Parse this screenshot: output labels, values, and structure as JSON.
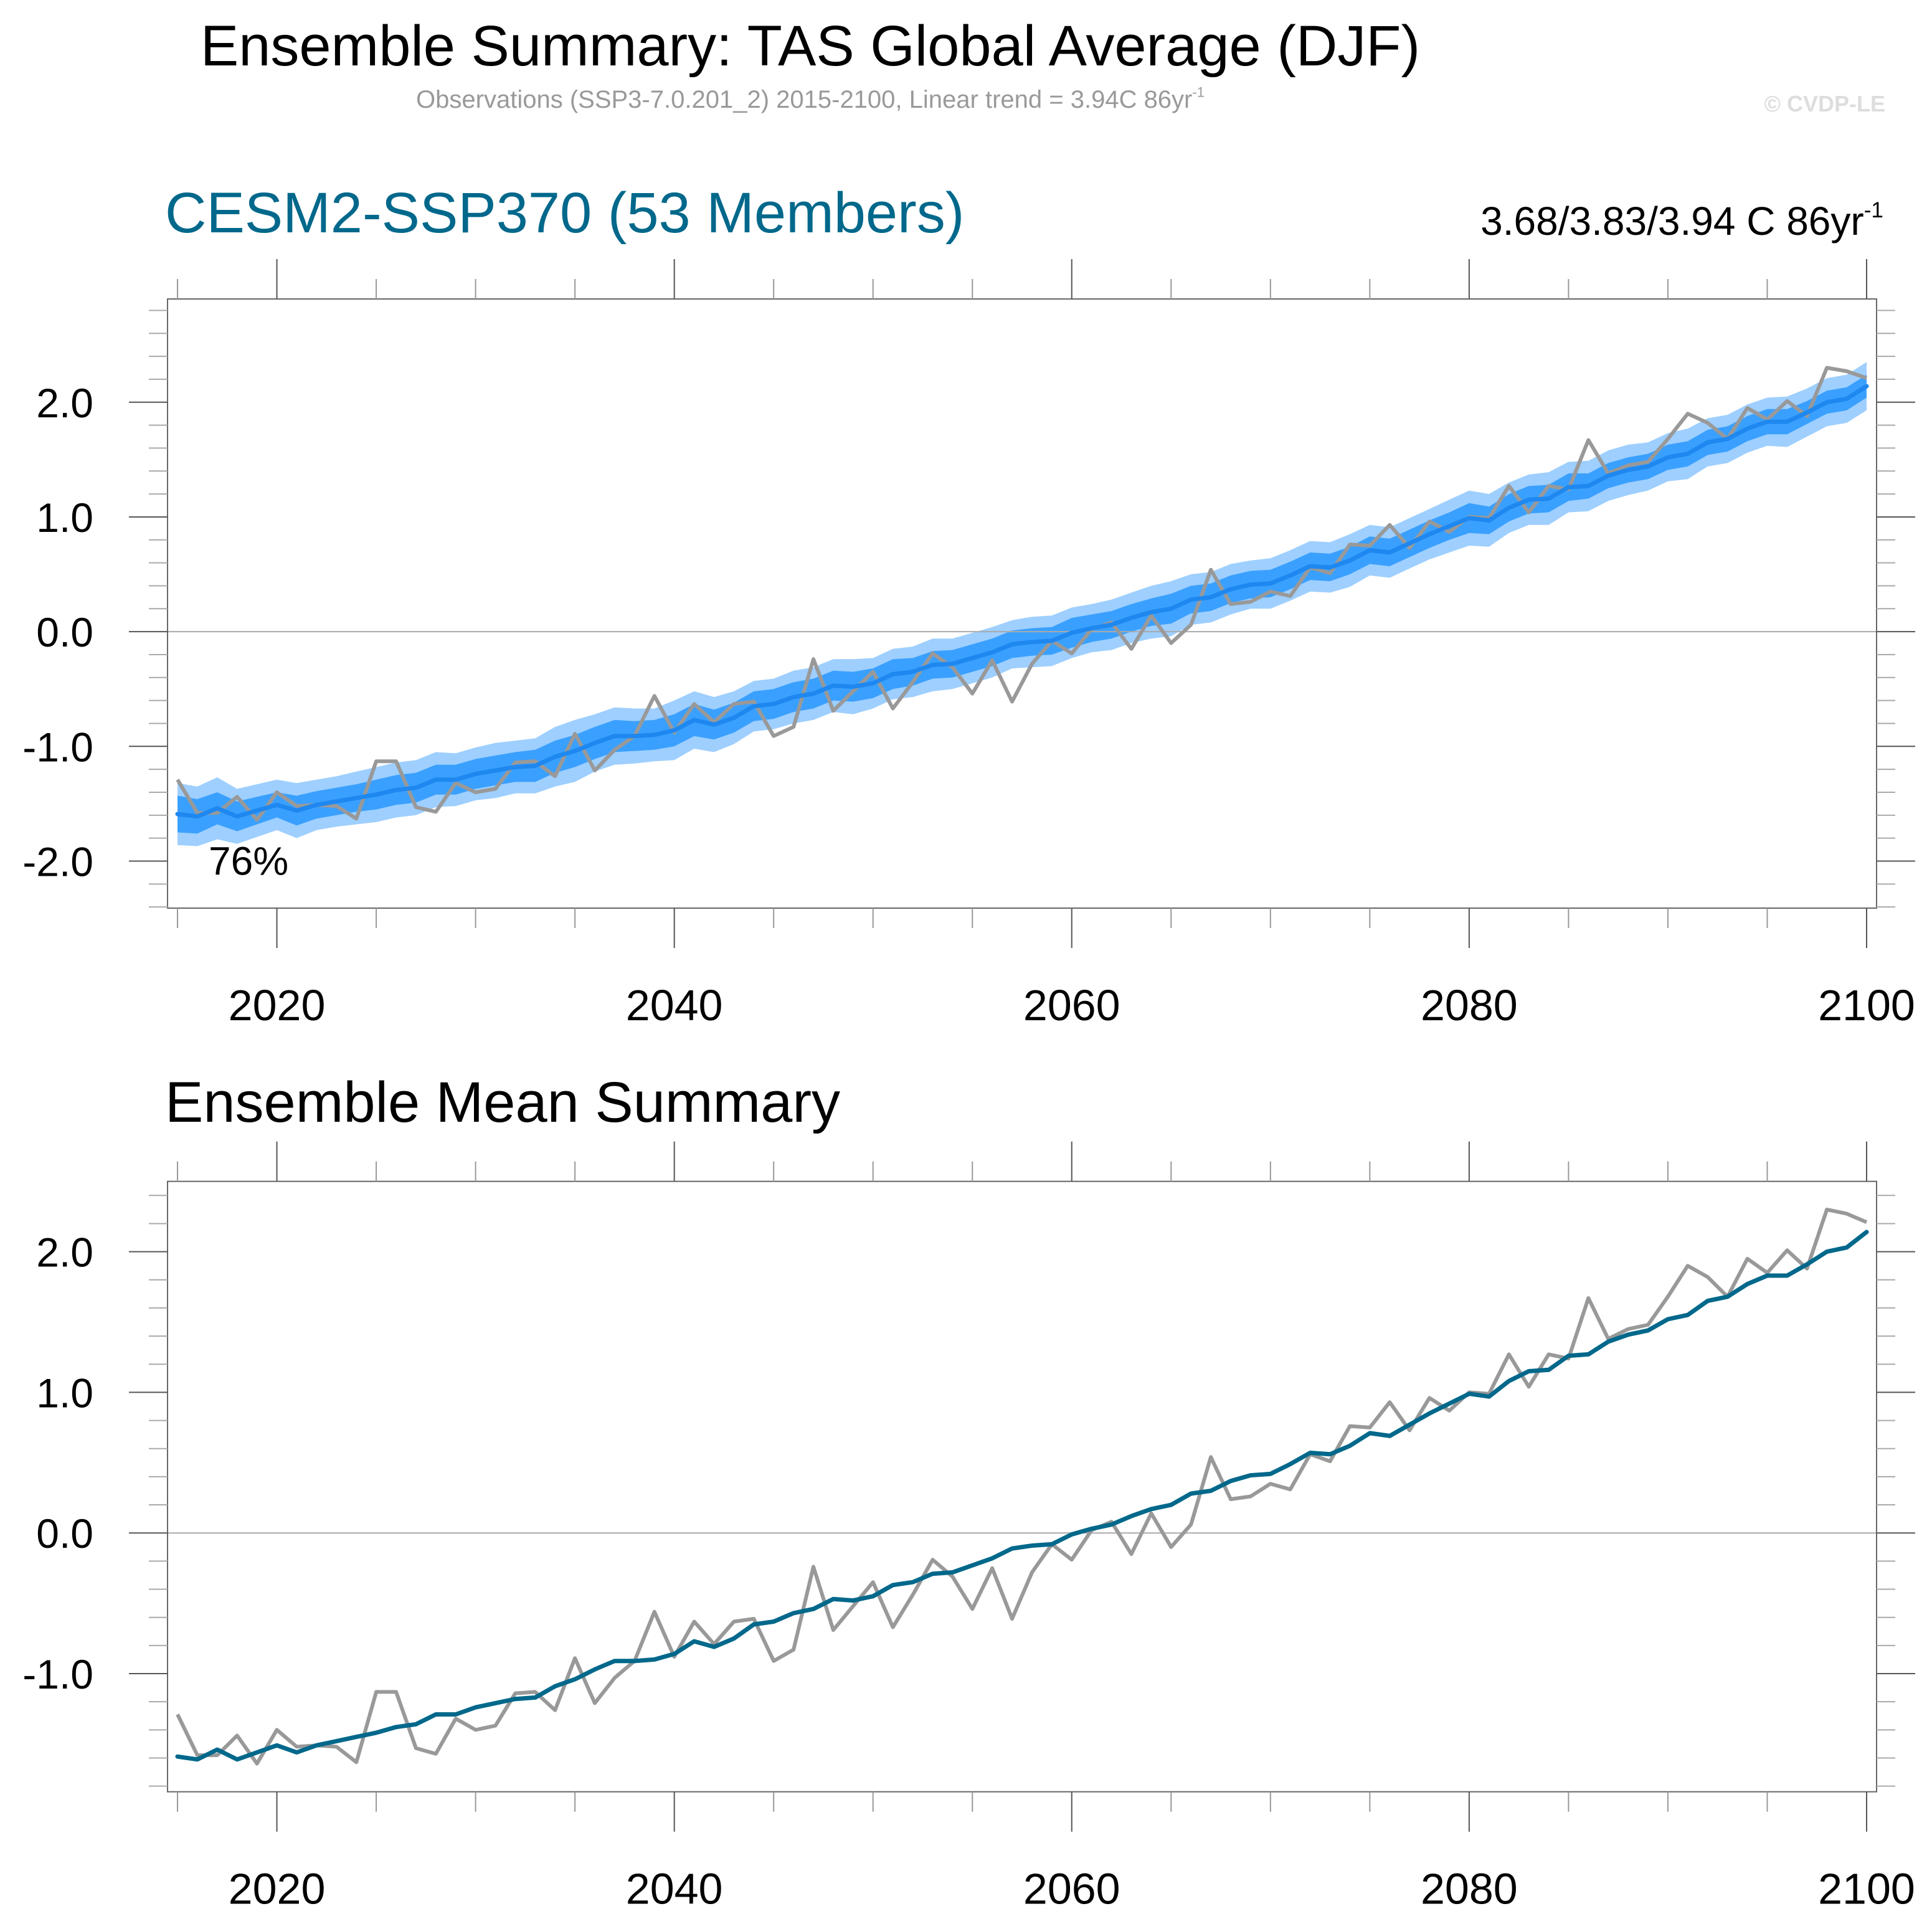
{
  "header": {
    "title": "Ensemble Summary: TAS Global Average (DJF)",
    "subtitle_main": "Observations (SSP3-7.0.201_2) 2015-2100, Linear trend = 3.94C 86yr",
    "subtitle_sup": "-1",
    "copyright": "© CVDP-LE"
  },
  "panels": {
    "top": {
      "title": "CESM2-SSP370 (53 Members)",
      "trend_main": "3.68/3.83/3.94 C 86yr",
      "trend_sup": "-1",
      "annotation": "76%"
    },
    "bottom": {
      "title": "Ensemble Mean Summary"
    }
  },
  "colors": {
    "model_title": "#00688b",
    "ensemble_mean_top": "#1e88f0",
    "inner_band": "#3aa0ff",
    "outer_band": "#9ecfff",
    "ensemble_mean_bottom": "#00688b",
    "observations": "#999999",
    "subtitle": "#999999",
    "copyright": "#dddddd"
  },
  "chart_data": [
    {
      "type": "area",
      "title": "CESM2-SSP370 (53 Members)",
      "xlabel": "",
      "ylabel": "",
      "xlim": [
        2015,
        2100
      ],
      "ylim": [
        -2.41,
        2.9
      ],
      "x_ticks": [
        2020,
        2040,
        2060,
        2080,
        2100
      ],
      "x_tick_labels": [
        "2020",
        "2040",
        "2060",
        "2080",
        "2100"
      ],
      "y_ticks": [
        -2.0,
        -1.0,
        0.0,
        1.0,
        2.0
      ],
      "y_tick_labels": [
        "-2.0",
        "-1.0",
        "0.0",
        "1.0",
        "2.0"
      ],
      "zero_line": true,
      "annotation": "76%",
      "x_start": 2015,
      "series_refs": [
        "ensemble_mean",
        "observations"
      ],
      "bands": [
        {
          "name": "outer spread (light)",
          "halfwidth": [
            0.27,
            0.26,
            0.27,
            0.24,
            0.23,
            0.22,
            0.24,
            0.22,
            0.22,
            0.23,
            0.24,
            0.24,
            0.24,
            0.24,
            0.23,
            0.23,
            0.24,
            0.23,
            0.24,
            0.26,
            0.27,
            0.25,
            0.25,
            0.24,
            0.23,
            0.26,
            0.25,
            0.24,
            0.23,
            0.22,
            0.22,
            0.23,
            0.23,
            0.23,
            0.24,
            0.22,
            0.22,
            0.22,
            0.23,
            0.22,
            0.22,
            0.22,
            0.21,
            0.22,
            0.22,
            0.22,
            0.21,
            0.22,
            0.22,
            0.23,
            0.24,
            0.22,
            0.22,
            0.22,
            0.21,
            0.22,
            0.22,
            0.22,
            0.22,
            0.23,
            0.22,
            0.22,
            0.22,
            0.22,
            0.23,
            0.24,
            0.23,
            0.22,
            0.22,
            0.23,
            0.22,
            0.22,
            0.22,
            0.22,
            0.21,
            0.21,
            0.22,
            0.21,
            0.21,
            0.21,
            0.21,
            0.22,
            0.21,
            0.21,
            0.21,
            0.21
          ]
        },
        {
          "name": "inner spread (dark)",
          "halfwidth": [
            0.16,
            0.15,
            0.14,
            0.13,
            0.12,
            0.11,
            0.13,
            0.12,
            0.12,
            0.12,
            0.13,
            0.13,
            0.13,
            0.13,
            0.13,
            0.13,
            0.13,
            0.13,
            0.14,
            0.14,
            0.14,
            0.14,
            0.14,
            0.13,
            0.13,
            0.14,
            0.14,
            0.13,
            0.13,
            0.13,
            0.13,
            0.13,
            0.13,
            0.13,
            0.13,
            0.13,
            0.13,
            0.12,
            0.12,
            0.12,
            0.12,
            0.12,
            0.12,
            0.12,
            0.12,
            0.13,
            0.12,
            0.12,
            0.12,
            0.12,
            0.13,
            0.12,
            0.12,
            0.12,
            0.12,
            0.12,
            0.12,
            0.12,
            0.12,
            0.12,
            0.12,
            0.12,
            0.12,
            0.12,
            0.12,
            0.13,
            0.12,
            0.12,
            0.12,
            0.12,
            0.12,
            0.11,
            0.11,
            0.11,
            0.11,
            0.11,
            0.11,
            0.11,
            0.11,
            0.11,
            0.11,
            0.11,
            0.1,
            0.1,
            0.1,
            0.1
          ]
        }
      ]
    },
    {
      "type": "line",
      "title": "Ensemble Mean Summary",
      "xlabel": "",
      "ylabel": "",
      "xlim": [
        2015,
        2100
      ],
      "ylim": [
        -1.84,
        2.5
      ],
      "x_ticks": [
        2020,
        2040,
        2060,
        2080,
        2100
      ],
      "x_tick_labels": [
        "2020",
        "2040",
        "2060",
        "2080",
        "2100"
      ],
      "y_ticks": [
        -1.0,
        0.0,
        1.0,
        2.0
      ],
      "y_tick_labels": [
        "-1.0",
        "0.0",
        "1.0",
        "2.0"
      ],
      "zero_line": true,
      "x_start": 2015,
      "series": [
        {
          "name": "ensemble_mean",
          "values": [
            -1.59,
            -1.61,
            -1.54,
            -1.61,
            -1.56,
            -1.51,
            -1.56,
            -1.51,
            -1.48,
            -1.45,
            -1.42,
            -1.38,
            -1.36,
            -1.29,
            -1.29,
            -1.24,
            -1.21,
            -1.18,
            -1.17,
            -1.09,
            -1.04,
            -0.97,
            -0.91,
            -0.91,
            -0.9,
            -0.86,
            -0.77,
            -0.81,
            -0.75,
            -0.65,
            -0.63,
            -0.57,
            -0.54,
            -0.47,
            -0.48,
            -0.45,
            -0.37,
            -0.35,
            -0.29,
            -0.28,
            -0.23,
            -0.18,
            -0.11,
            -0.09,
            -0.08,
            -0.01,
            0.03,
            0.06,
            0.12,
            0.17,
            0.2,
            0.28,
            0.3,
            0.37,
            0.41,
            0.42,
            0.49,
            0.57,
            0.56,
            0.62,
            0.71,
            0.69,
            0.77,
            0.85,
            0.92,
            0.99,
            0.97,
            1.08,
            1.15,
            1.16,
            1.26,
            1.27,
            1.36,
            1.41,
            1.44,
            1.52,
            1.55,
            1.65,
            1.68,
            1.77,
            1.83,
            1.83,
            1.91,
            2.0,
            2.03,
            2.14
          ]
        },
        {
          "name": "observations",
          "values": [
            -1.29,
            -1.58,
            -1.58,
            -1.44,
            -1.64,
            -1.4,
            -1.52,
            -1.51,
            -1.52,
            -1.63,
            -1.13,
            -1.13,
            -1.53,
            -1.57,
            -1.32,
            -1.4,
            -1.37,
            -1.14,
            -1.13,
            -1.26,
            -0.89,
            -1.21,
            -1.03,
            -0.91,
            -0.56,
            -0.88,
            -0.63,
            -0.79,
            -0.63,
            -0.61,
            -0.91,
            -0.83,
            -0.24,
            -0.69,
            -0.52,
            -0.35,
            -0.67,
            -0.44,
            -0.19,
            -0.31,
            -0.54,
            -0.25,
            -0.61,
            -0.28,
            -0.08,
            -0.19,
            0.02,
            0.08,
            -0.15,
            0.14,
            -0.1,
            0.06,
            0.54,
            0.24,
            0.26,
            0.35,
            0.31,
            0.56,
            0.51,
            0.76,
            0.75,
            0.93,
            0.73,
            0.96,
            0.87,
            1.0,
            0.99,
            1.27,
            1.04,
            1.27,
            1.24,
            1.67,
            1.38,
            1.45,
            1.48,
            1.68,
            1.9,
            1.82,
            1.68,
            1.95,
            1.85,
            2.01,
            1.88,
            2.3,
            2.27,
            2.21
          ]
        }
      ]
    }
  ]
}
